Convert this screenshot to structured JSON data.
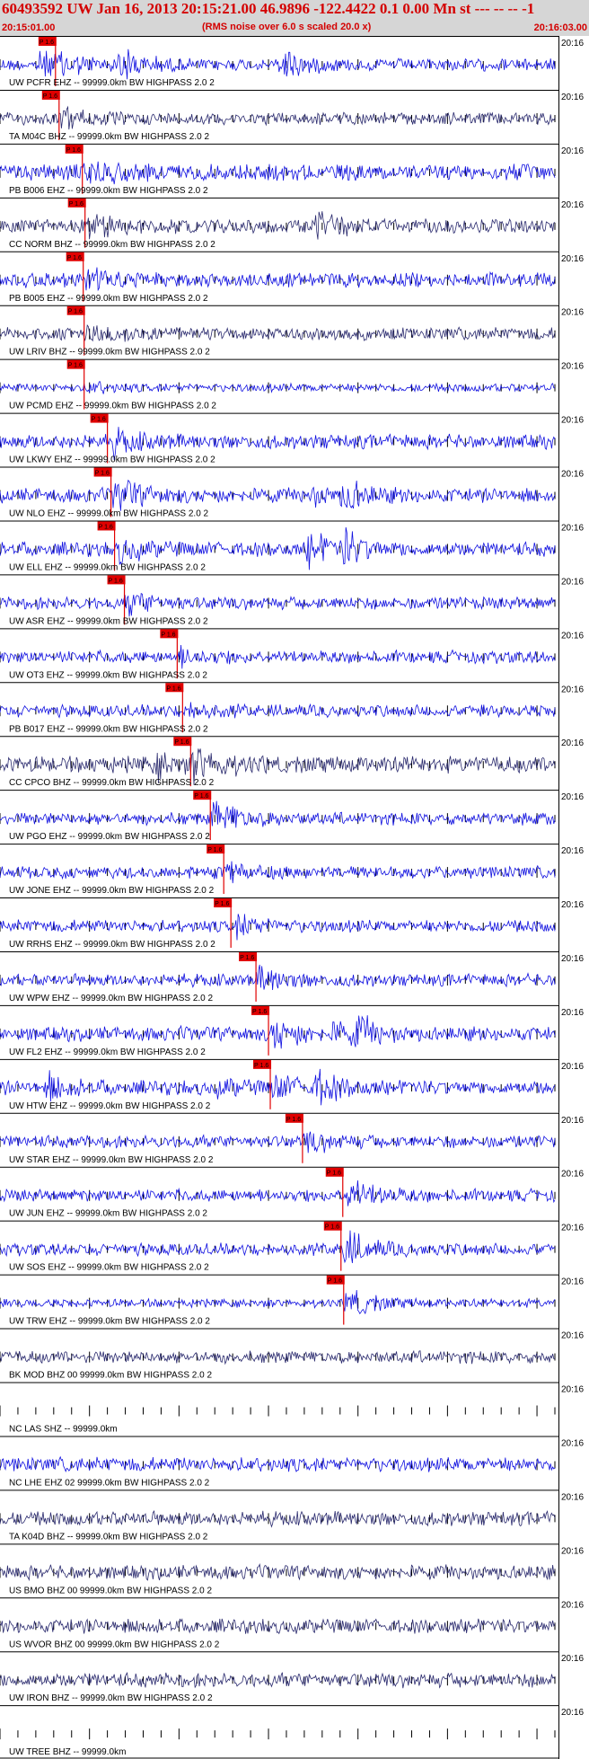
{
  "header": {
    "title": "60493592 UW Jan 16, 2013 20:15:21.00   46.9896 -122.4422  0.1 0.00 Mn st --- -- --   -1",
    "start_time": "20:15:01.00",
    "note": "(RMS noise over 6.0 s scaled 20.0 x)",
    "end_time": "20:16:03.00"
  },
  "chart_data": {
    "type": "line",
    "pick_label": "P 1.6",
    "edge_time": "20:16",
    "x_range": [
      0,
      62
    ],
    "traces": [
      {
        "label": "UW PCFR EHZ -- 99999.0km BW  HIGHPASS  2.0  2",
        "color": "#1010e0",
        "pick": 6.2,
        "amp": 0.5,
        "noise": 0.3,
        "events": [
          [
            4,
            0.8
          ],
          [
            13,
            1.0
          ],
          [
            31,
            1.0
          ]
        ]
      },
      {
        "label": "TA M04C BHZ -- 99999.0km BW  HIGHPASS  2.0  2",
        "color": "#2a2a6e",
        "pick": 6.6,
        "amp": 0.5,
        "noise": 0.3,
        "events": []
      },
      {
        "label": "PB B006 EHZ -- 99999.0km BW  HIGHPASS  2.0  2",
        "color": "#1010e0",
        "pick": 9.2,
        "amp": 0.7,
        "noise": 0.4,
        "events": []
      },
      {
        "label": "CC NORM BHZ -- 99999.0km BW  HIGHPASS  2.0  2",
        "color": "#2a2a6e",
        "pick": 9.5,
        "amp": 0.6,
        "noise": 0.35,
        "events": [
          [
            35,
            0.8
          ]
        ]
      },
      {
        "label": "PB B005 EHZ -- 99999.0km BW  HIGHPASS  2.0  2",
        "color": "#1010e0",
        "pick": 9.3,
        "amp": 0.7,
        "noise": 0.35,
        "events": []
      },
      {
        "label": "UW LRIV BHZ -- 99999.0km BW  HIGHPASS  2.0  2",
        "color": "#2a2a6e",
        "pick": 9.4,
        "amp": 0.6,
        "noise": 0.3,
        "events": []
      },
      {
        "label": "UW PCMD EHZ -- 99999.0km BW  HIGHPASS  2.0  2",
        "color": "#1010e0",
        "pick": 9.4,
        "amp": 0.3,
        "noise": 0.2,
        "events": []
      },
      {
        "label": "UW LKWY EHZ -- 99999.0km BW  HIGHPASS  2.0  2",
        "color": "#1010e0",
        "pick": 12.0,
        "amp": 0.6,
        "noise": 0.35,
        "events": []
      },
      {
        "label": "UW NLO EHZ -- 99999.0km BW  HIGHPASS  2.0  2",
        "color": "#1010e0",
        "pick": 12.4,
        "amp": 0.9,
        "noise": 0.35,
        "events": [
          [
            34,
            0.5
          ],
          [
            38,
            1.0
          ]
        ]
      },
      {
        "label": "UW ELL EHZ -- 99999.0km BW  HIGHPASS  2.0  2",
        "color": "#1010e0",
        "pick": 12.8,
        "amp": 0.6,
        "noise": 0.35,
        "events": [
          [
            34,
            1.0
          ],
          [
            38,
            1.0
          ]
        ]
      },
      {
        "label": "UW ASR EHZ -- 99999.0km BW  HIGHPASS  2.0  2",
        "color": "#1010e0",
        "pick": 13.9,
        "amp": 0.6,
        "noise": 0.3,
        "events": []
      },
      {
        "label": "UW OT3 EHZ -- 99999.0km BW  HIGHPASS  2.0  2",
        "color": "#1010e0",
        "pick": 19.8,
        "amp": 0.4,
        "noise": 0.3,
        "events": []
      },
      {
        "label": "PB B017 EHZ -- 99999.0km BW  HIGHPASS  2.0  2",
        "color": "#1010e0",
        "pick": 20.4,
        "amp": 0.4,
        "noise": 0.3,
        "events": []
      },
      {
        "label": "CC CPCO BHZ -- 99999.0km BW  HIGHPASS  2.0  2",
        "color": "#2a2a6e",
        "pick": 21.3,
        "amp": 0.9,
        "noise": 0.4,
        "events": [
          [
            17,
            0.6
          ]
        ]
      },
      {
        "label": "UW PGO EHZ -- 99999.0km BW  HIGHPASS  2.0  2",
        "color": "#1010e0",
        "pick": 23.5,
        "amp": 1.0,
        "noise": 0.3,
        "events": []
      },
      {
        "label": "UW JONE EHZ -- 99999.0km BW  HIGHPASS  2.0  2",
        "color": "#1010e0",
        "pick": 25.0,
        "amp": 0.5,
        "noise": 0.3,
        "events": []
      },
      {
        "label": "UW RRHS EHZ -- 99999.0km BW  HIGHPASS  2.0  2",
        "color": "#1010e0",
        "pick": 25.8,
        "amp": 0.6,
        "noise": 0.3,
        "events": []
      },
      {
        "label": "UW WPW EHZ -- 99999.0km BW  HIGHPASS  2.0  2",
        "color": "#1010e0",
        "pick": 28.6,
        "amp": 0.7,
        "noise": 0.3,
        "events": []
      },
      {
        "label": "UW FL2 EHZ -- 99999.0km BW  HIGHPASS  2.0  2",
        "color": "#1010e0",
        "pick": 30.0,
        "amp": 0.9,
        "noise": 0.35,
        "events": [
          [
            37,
            0.6
          ],
          [
            39.5,
            0.8
          ]
        ]
      },
      {
        "label": "UW HTW EHZ -- 99999.0km BW  HIGHPASS  2.0  2",
        "color": "#1010e0",
        "pick": 30.2,
        "amp": 0.6,
        "noise": 0.35,
        "events": [
          [
            5,
            0.7
          ],
          [
            24,
            0.4
          ],
          [
            35,
            0.9
          ]
        ]
      },
      {
        "label": "UW STAR EHZ -- 99999.0km BW  HIGHPASS  2.0  2",
        "color": "#1010e0",
        "pick": 33.8,
        "amp": 0.5,
        "noise": 0.3,
        "events": []
      },
      {
        "label": "UW JUN EHZ -- 99999.0km BW  HIGHPASS  2.0  2",
        "color": "#1010e0",
        "pick": 38.3,
        "amp": 1.0,
        "noise": 0.3,
        "events": []
      },
      {
        "label": "UW SOS EHZ -- 99999.0km BW  HIGHPASS  2.0  2",
        "color": "#1010e0",
        "pick": 38.1,
        "amp": 1.0,
        "noise": 0.3,
        "events": []
      },
      {
        "label": "UW TRW EHZ -- 99999.0km BW  HIGHPASS  2.0  2",
        "color": "#1010e0",
        "pick": 38.4,
        "amp": 0.9,
        "noise": 0.2,
        "events": []
      },
      {
        "label": "BK MOD BHZ 00 99999.0km BW  HIGHPASS  2.0  2",
        "color": "#2a2a6e",
        "pick": null,
        "amp": 0,
        "noise": 0.3,
        "events": []
      },
      {
        "label": "NC LAS SHZ -- 99999.0km",
        "color": "#1010e0",
        "pick": null,
        "amp": 0,
        "noise": 0,
        "events": []
      },
      {
        "label": "NC LHE EHZ 02 99999.0km BW  HIGHPASS  2.0  2",
        "color": "#1010e0",
        "pick": null,
        "amp": 0,
        "noise": 0.35,
        "events": []
      },
      {
        "label": "TA K04D BHZ -- 99999.0km BW  HIGHPASS  2.0  2",
        "color": "#2a2a6e",
        "pick": null,
        "amp": 0,
        "noise": 0.35,
        "events": []
      },
      {
        "label": "US BMO BHZ 00 99999.0km BW  HIGHPASS  2.0  2",
        "color": "#2a2a6e",
        "pick": null,
        "amp": 0,
        "noise": 0.35,
        "events": []
      },
      {
        "label": "US WVOR BHZ 00 99999.0km BW  HIGHPASS  2.0  2",
        "color": "#2a2a6e",
        "pick": null,
        "amp": 0,
        "noise": 0.35,
        "events": []
      },
      {
        "label": "UW IRON BHZ -- 99999.0km BW  HIGHPASS  2.0  2",
        "color": "#2a2a6e",
        "pick": null,
        "amp": 0,
        "noise": 0.35,
        "events": []
      },
      {
        "label": "UW TREE BHZ -- 99999.0km",
        "color": "#2a2a6e",
        "pick": null,
        "amp": 0,
        "noise": 0,
        "events": []
      }
    ]
  }
}
